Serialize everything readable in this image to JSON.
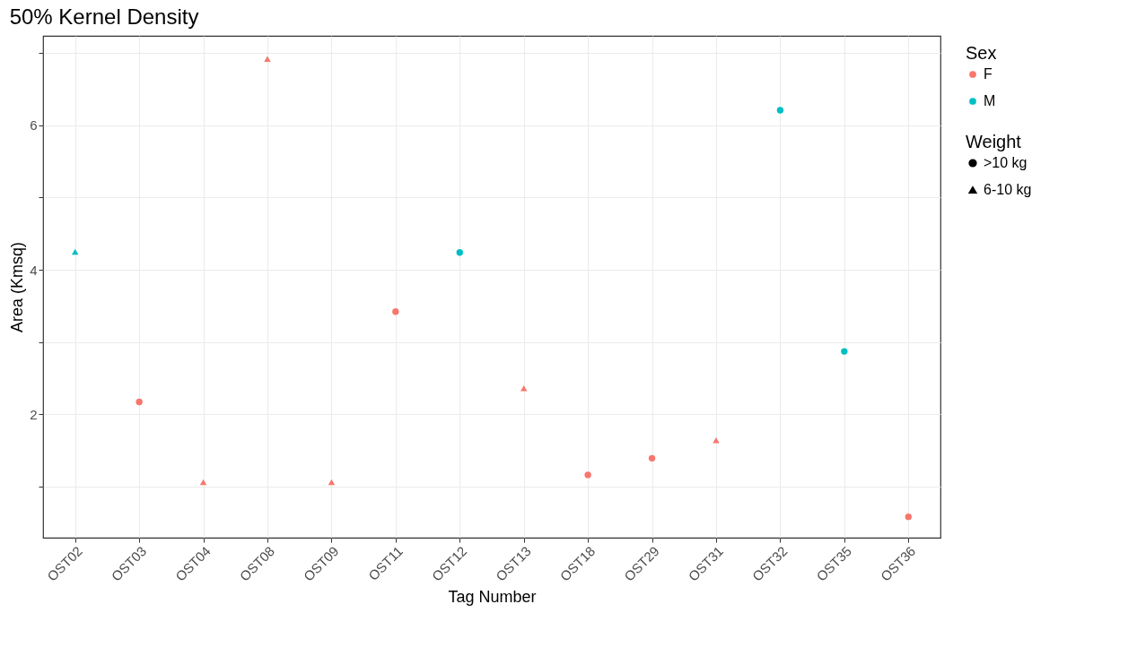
{
  "chart_data": {
    "type": "scatter",
    "title": "50% Kernel Density",
    "xlabel": "Tag Number",
    "ylabel": "Area (Kmsq)",
    "categories": [
      "OST02",
      "OST03",
      "OST04",
      "OST08",
      "OST09",
      "OST11",
      "OST12",
      "OST13",
      "OST18",
      "OST29",
      "OST31",
      "OST32",
      "OST35",
      "OST36"
    ],
    "series": [
      {
        "name": "F",
        "color": "#f8766d",
        "marker": "circle",
        "values": [
          null,
          2.17,
          null,
          null,
          null,
          3.42,
          null,
          null,
          1.16,
          1.39,
          null,
          null,
          null,
          0.58
        ]
      },
      {
        "color": "#f8766d",
        "marker": "triangle",
        "values": [
          null,
          null,
          1.06,
          6.92,
          1.06,
          null,
          null,
          2.36,
          null,
          null,
          1.64,
          null,
          null,
          null
        ]
      },
      {
        "name": "M",
        "color": "#00bfc4",
        "marker": "circle",
        "values": [
          null,
          null,
          null,
          null,
          null,
          null,
          4.24,
          null,
          null,
          null,
          null,
          6.21,
          2.87,
          null
        ]
      },
      {
        "color": "#00bfc4",
        "marker": "triangle",
        "values": [
          4.25,
          null,
          null,
          null,
          null,
          null,
          null,
          null,
          null,
          null,
          null,
          null,
          null,
          null
        ]
      }
    ],
    "legend_title": "Sex",
    "annotations": [
      "Weight",
      ">10 kg",
      "6-10 kg"
    ],
    "ylim": [
      0.29,
      7.24
    ],
    "yticks": [
      {
        "value": 1,
        "label": null
      },
      2,
      {
        "value": 3,
        "label": null
      },
      4,
      {
        "value": 5,
        "label": null
      },
      6,
      {
        "value": 7,
        "label": null
      }
    ],
    "grid": true,
    "legend": "right"
  }
}
